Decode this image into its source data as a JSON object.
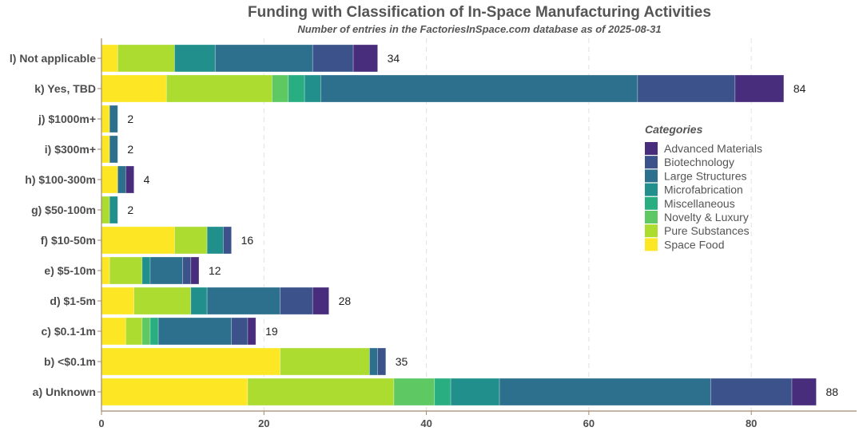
{
  "chart_data": {
    "type": "bar",
    "orientation": "horizontal",
    "stacked": true,
    "title": "Funding with Classification of In-Space Manufacturing Activities",
    "subtitle": "Number of entries in the FactoriesInSpace.com database as of 2025-08-31",
    "xlabel": "",
    "ylabel": "",
    "xlim": [
      0,
      93
    ],
    "xticks": [
      0,
      20,
      40,
      60,
      80
    ],
    "grid": "vertical dashed",
    "legend_title": "Categories",
    "legend_position": "right",
    "categories": [
      "a) Unknown",
      "b)  <$0.1m",
      "c)  $0.1-1m",
      "d)  $1-5m",
      "e)  $5-10m",
      "f)  $10-50m",
      "g)  $50-100m",
      "h)  $100-300m",
      "i)  $300m+",
      "j)  $1000m+",
      "k) Yes, TBD",
      "l) Not applicable"
    ],
    "totals": [
      88,
      35,
      19,
      28,
      12,
      16,
      2,
      4,
      2,
      2,
      84,
      34
    ],
    "series": [
      {
        "name": "Space Food",
        "color": "#fde725",
        "values": [
          18,
          22,
          3,
          4,
          1,
          9,
          0,
          2,
          1,
          1,
          8,
          2
        ]
      },
      {
        "name": "Pure Substances",
        "color": "#addc30",
        "values": [
          18,
          11,
          2,
          7,
          4,
          4,
          1,
          0,
          0,
          0,
          13,
          7
        ]
      },
      {
        "name": "Novelty & Luxury",
        "color": "#5ec962",
        "values": [
          5,
          0,
          1,
          0,
          0,
          0,
          0,
          0,
          0,
          0,
          2,
          0
        ]
      },
      {
        "name": "Miscellaneous",
        "color": "#28ae80",
        "values": [
          2,
          0,
          1,
          0,
          0,
          0,
          0,
          0,
          0,
          0,
          2,
          0
        ]
      },
      {
        "name": "Microfabrication",
        "color": "#21908d",
        "values": [
          6,
          0,
          0,
          2,
          1,
          2,
          1,
          0,
          0,
          0,
          2,
          5
        ]
      },
      {
        "name": "Large Structures",
        "color": "#2c708e",
        "values": [
          26,
          1,
          9,
          9,
          4,
          0,
          0,
          1,
          1,
          1,
          39,
          12
        ]
      },
      {
        "name": "Biotechnology",
        "color": "#3b528b",
        "values": [
          10,
          1,
          2,
          4,
          1,
          1,
          0,
          0,
          0,
          0,
          12,
          5
        ]
      },
      {
        "name": "Advanced Materials",
        "color": "#472d7b",
        "values": [
          3,
          0,
          1,
          2,
          1,
          0,
          0,
          1,
          0,
          0,
          6,
          3
        ]
      }
    ],
    "legend_order": [
      "Advanced Materials",
      "Biotechnology",
      "Large Structures",
      "Microfabrication",
      "Miscellaneous",
      "Novelty & Luxury",
      "Pure Substances",
      "Space Food"
    ]
  }
}
